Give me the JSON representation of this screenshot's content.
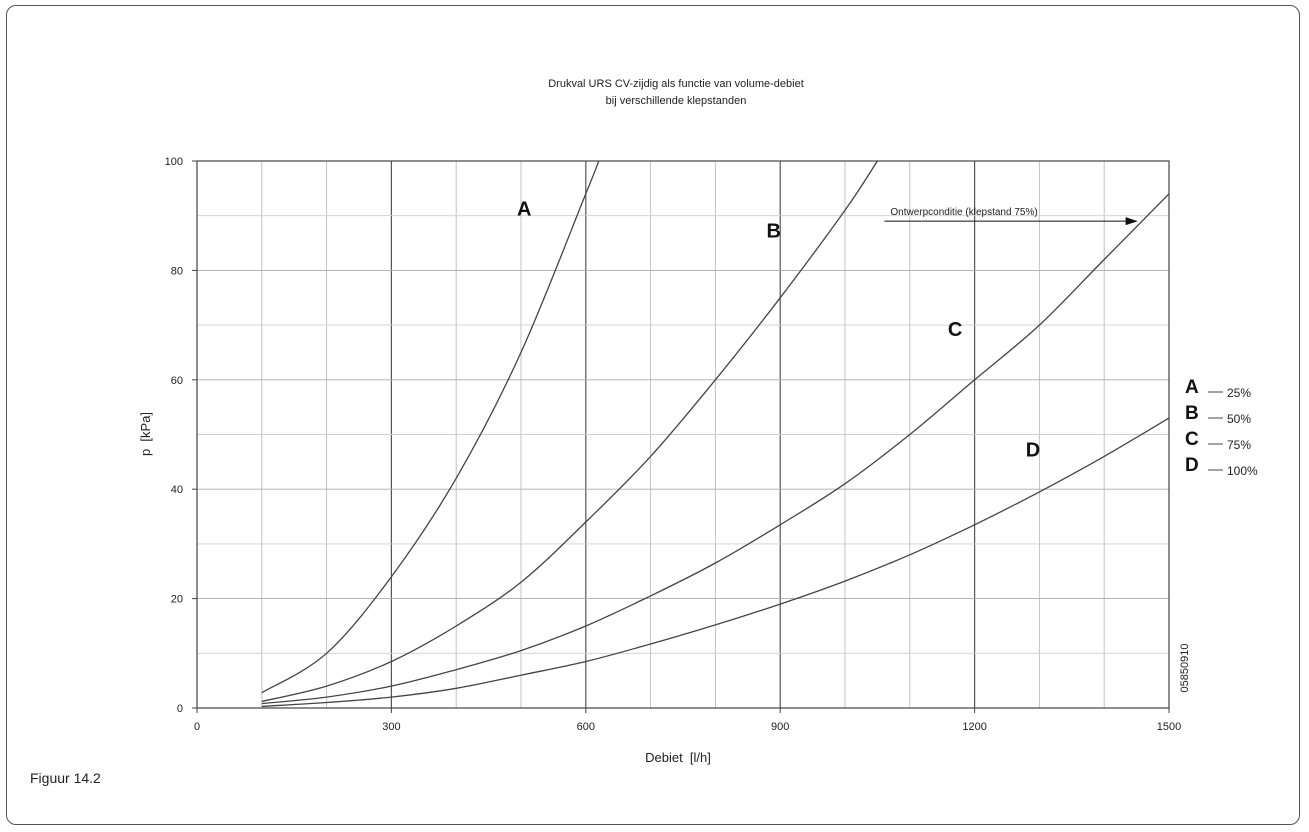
{
  "caption": "Figuur 14.2",
  "chart_data": {
    "type": "line",
    "title": "Drukval URS CV-zijdig als functie van volume-debiet",
    "subtitle": "bij verschillende klepstanden",
    "xlabel": "Debiet  [l/h]",
    "ylabel": "p  [kPa]",
    "xlim": [
      0,
      1500
    ],
    "ylim": [
      0,
      100
    ],
    "xticks": [
      0,
      300,
      600,
      900,
      1200,
      1500
    ],
    "yticks": [
      0,
      20,
      40,
      60,
      80,
      100
    ],
    "grid": true,
    "series": [
      {
        "name": "A",
        "x": [
          100,
          200,
          300,
          400,
          500,
          600,
          620
        ],
        "y": [
          2.8,
          10,
          24,
          42,
          65,
          94,
          100
        ]
      },
      {
        "name": "B",
        "x": [
          100,
          200,
          300,
          400,
          500,
          600,
          700,
          800,
          900,
          1000,
          1050
        ],
        "y": [
          1.2,
          4,
          8.5,
          15,
          23,
          34,
          46,
          60,
          75,
          91,
          100
        ]
      },
      {
        "name": "C",
        "x": [
          100,
          200,
          300,
          400,
          500,
          600,
          700,
          800,
          900,
          1000,
          1100,
          1200,
          1300,
          1400,
          1500
        ],
        "y": [
          0.8,
          2,
          4,
          7,
          10.5,
          15,
          20.5,
          26.5,
          33.5,
          41,
          50,
          60,
          70,
          82,
          94
        ]
      },
      {
        "name": "D",
        "x": [
          100,
          200,
          300,
          400,
          500,
          600,
          700,
          800,
          900,
          1000,
          1100,
          1200,
          1300,
          1400,
          1500
        ],
        "y": [
          0.3,
          1,
          2,
          3.6,
          6,
          8.5,
          11.7,
          15.2,
          19,
          23.2,
          28,
          33.5,
          39.5,
          46,
          53
        ]
      }
    ],
    "legend": {
      "placement": "right",
      "entries": [
        {
          "key": "A",
          "label": "25%"
        },
        {
          "key": "B",
          "label": "50%"
        },
        {
          "key": "C",
          "label": "75%"
        },
        {
          "key": "D",
          "label": "100%"
        }
      ]
    },
    "curve_labels": [
      {
        "key": "A",
        "x": 505,
        "y": 90
      },
      {
        "key": "B",
        "x": 890,
        "y": 86
      },
      {
        "key": "C",
        "x": 1170,
        "y": 68
      },
      {
        "key": "D",
        "x": 1290,
        "y": 46
      }
    ],
    "annotation": {
      "text": "Ontwerpconditie (klepstand 75%)",
      "x_start": 1070,
      "x_end": 1450,
      "y": 89
    },
    "side_code": "05850910"
  }
}
